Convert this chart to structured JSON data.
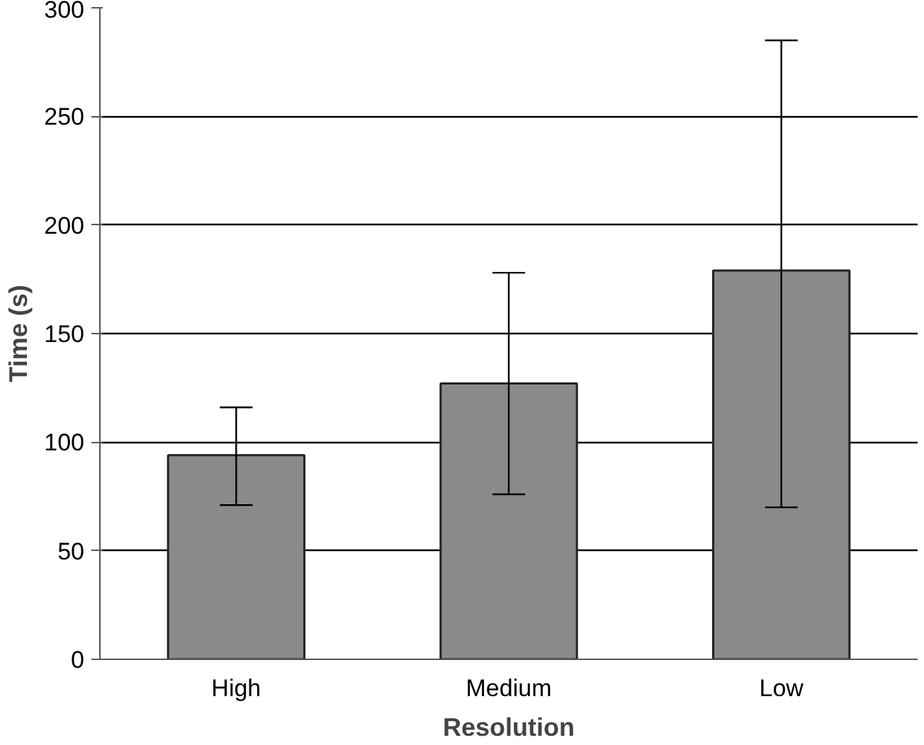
{
  "chart_data": {
    "type": "bar",
    "xlabel": "Resolution",
    "ylabel": "Time (s)",
    "categories": [
      "High",
      "Medium",
      "Low"
    ],
    "values": [
      94,
      127,
      179
    ],
    "color": "#8a8a8a",
    "errors": [
      [
        71,
        116
      ],
      [
        76,
        178
      ],
      [
        70,
        285
      ]
    ],
    "ylim": [
      0,
      300
    ],
    "yticks": [
      0,
      50,
      100,
      150,
      200,
      250,
      300
    ],
    "grid": "y"
  }
}
